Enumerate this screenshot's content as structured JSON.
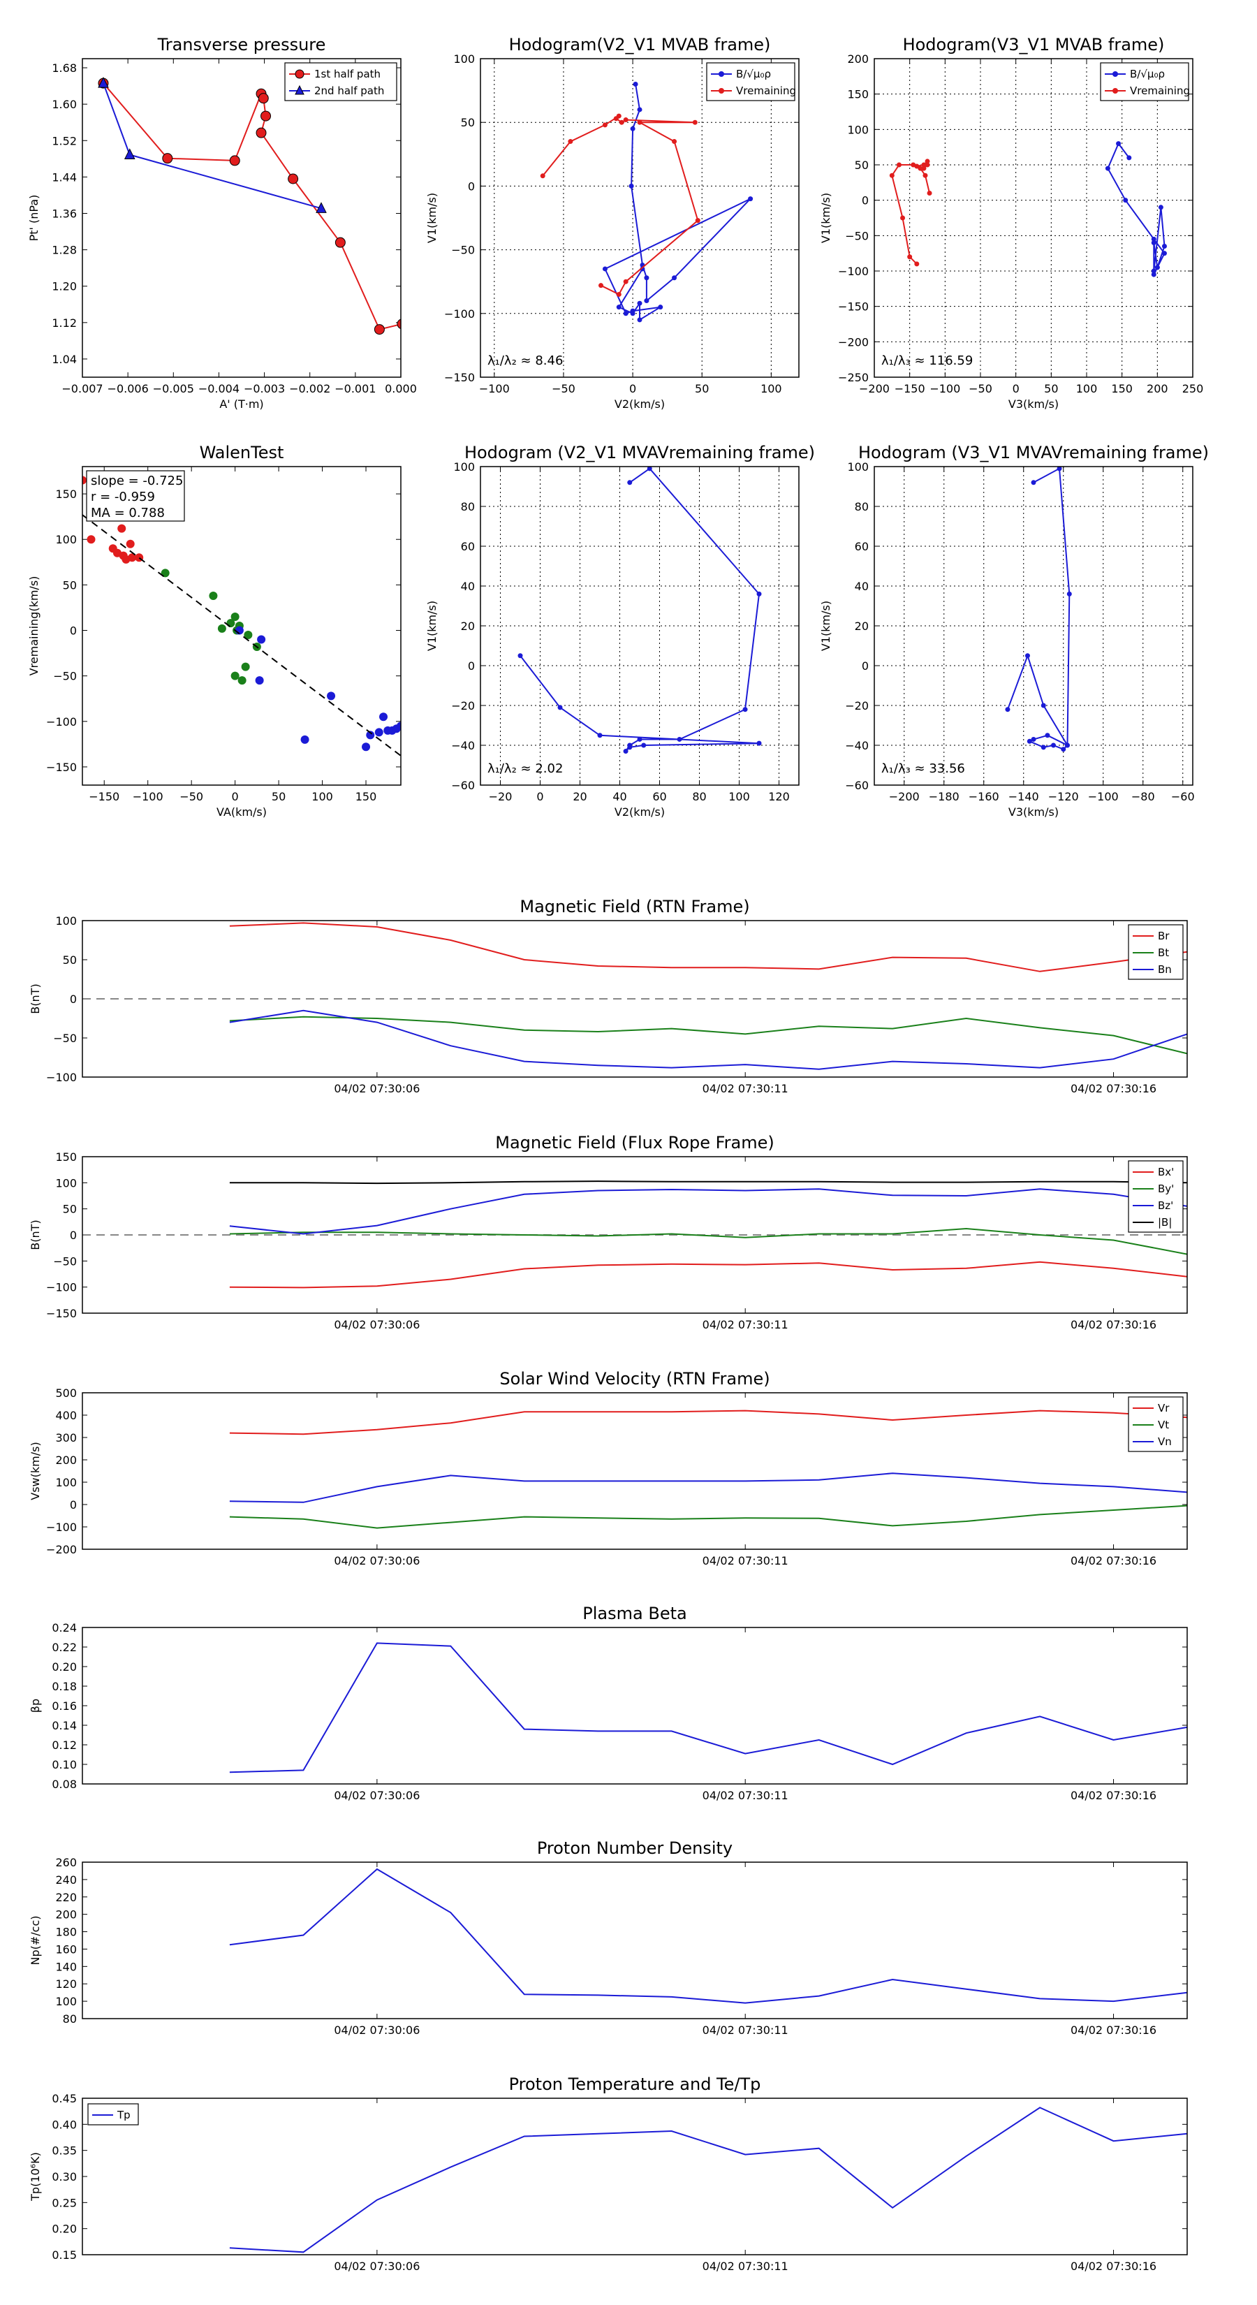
{
  "colors": {
    "red": "#e11d1d",
    "green": "#1a801a",
    "blue": "#1b1bd6",
    "black": "#000000",
    "gray": "#888888"
  },
  "chart_data": [
    {
      "id": "pt",
      "type": "scatter",
      "title": "Transverse pressure",
      "xlabel": "A' (T·m)",
      "ylabel": "Pt' (nPa)",
      "xlim": [
        -0.007,
        0.0
      ],
      "ylim": [
        1.0,
        1.7
      ],
      "xticks": [
        "−0.007",
        "−0.006",
        "−0.005",
        "−0.004",
        "−0.003",
        "−0.002",
        "−0.001",
        "0.000"
      ],
      "yticks": [
        "1.04",
        "1.12",
        "1.20",
        "1.28",
        "1.36",
        "1.44",
        "1.52",
        "1.60",
        "1.68"
      ],
      "legend": [
        "1st half path",
        "2nd half path"
      ],
      "series": [
        {
          "name": "1st half path",
          "color": "red",
          "marker": "circle",
          "x": [
            -0.00654,
            -0.00513,
            -0.00365,
            -0.00307,
            -0.00302,
            -0.00297,
            -0.00307,
            -0.00237,
            -0.00133,
            -0.00047,
            3e-05
          ],
          "y": [
            1.646,
            1.481,
            1.476,
            1.623,
            1.613,
            1.574,
            1.537,
            1.436,
            1.296,
            1.105,
            1.117
          ]
        },
        {
          "name": "2nd half path",
          "color": "blue",
          "marker": "triangle",
          "x": [
            -0.00654,
            -0.00596,
            -0.00175
          ],
          "y": [
            1.646,
            1.489,
            1.371
          ]
        }
      ]
    },
    {
      "id": "h1",
      "type": "line",
      "title": "Hodogram(V2_V1 MVAB frame)",
      "xlabel": "V2(km/s)",
      "ylabel": "V1(km/s)",
      "xlim": [
        -110,
        120
      ],
      "ylim": [
        -150,
        100
      ],
      "xticks": [
        "−100",
        "−50",
        "0",
        "50",
        "100"
      ],
      "yticks": [
        "−150",
        "−100",
        "−50",
        "0",
        "50",
        "100"
      ],
      "legend": [
        "B/√μ₀ρ",
        "Vremaining"
      ],
      "annotation": "λ₁/λ₂ ≈ 8.46",
      "series": [
        {
          "name": "B",
          "color": "blue",
          "x": [
            2,
            5,
            0,
            -1,
            7,
            10,
            10,
            30,
            85,
            -20,
            -5,
            0,
            20,
            5,
            5,
            0,
            -10,
            7
          ],
          "y": [
            80,
            60,
            45,
            0,
            -62,
            -72,
            -90,
            -72,
            -10,
            -65,
            -100,
            -98,
            -95,
            -105,
            -92,
            -100,
            -95,
            -65
          ]
        },
        {
          "name": "V",
          "color": "red",
          "x": [
            -65,
            -45,
            -20,
            -10,
            -12,
            -8,
            -5,
            45,
            5,
            30,
            47,
            -5,
            -10,
            -23
          ],
          "y": [
            8,
            35,
            48,
            55,
            53,
            50,
            52,
            50,
            50,
            35,
            -27,
            -75,
            -85,
            -78
          ]
        }
      ]
    },
    {
      "id": "h2",
      "type": "line",
      "title": "Hodogram(V3_V1 MVAB frame)",
      "xlabel": "V3(km/s)",
      "ylabel": "V1(km/s)",
      "xlim": [
        -200,
        250
      ],
      "ylim": [
        -250,
        200
      ],
      "xticks": [
        "−200",
        "−150",
        "−100",
        "−50",
        "0",
        "50",
        "100",
        "150",
        "200",
        "250"
      ],
      "yticks": [
        "−250",
        "−200",
        "−150",
        "−100",
        "−50",
        "0",
        "50",
        "100",
        "150",
        "200"
      ],
      "legend": [
        "B/√μ₀ρ",
        "Vremaining"
      ],
      "annotation": "λ₁/λ₃ ≈ 116.59",
      "series": [
        {
          "name": "B",
          "color": "blue",
          "x": [
            160,
            145,
            130,
            155,
            195,
            210,
            200,
            195,
            195,
            200,
            210,
            205,
            195
          ],
          "y": [
            60,
            80,
            45,
            0,
            -55,
            -75,
            -95,
            -105,
            -60,
            -95,
            -65,
            -10,
            -100
          ]
        },
        {
          "name": "V",
          "color": "red",
          "x": [
            -140,
            -150,
            -160,
            -175,
            -165,
            -145,
            -130,
            -125,
            -125,
            -130,
            -140,
            -135,
            -128,
            -122
          ],
          "y": [
            -90,
            -80,
            -25,
            35,
            50,
            50,
            45,
            50,
            55,
            50,
            48,
            45,
            35,
            10
          ]
        }
      ]
    },
    {
      "id": "walen",
      "type": "scatter",
      "title": "WalenTest",
      "xlabel": "VA(km/s)",
      "ylabel": "Vremaining(km/s)",
      "xlim": [
        -175,
        190
      ],
      "ylim": [
        -170,
        180
      ],
      "xticks": [
        "−150",
        "−100",
        "−50",
        "0",
        "50",
        "100",
        "150"
      ],
      "yticks": [
        "−150",
        "−100",
        "−50",
        "0",
        "50",
        "100",
        "150"
      ],
      "legend": [
        "slope = -0.725",
        "r = -0.959",
        "MA = 0.788"
      ],
      "fit_slope": -0.725,
      "series": [
        {
          "name": "red",
          "color": "red",
          "x": [
            -165,
            -175,
            -140,
            -135,
            -128,
            -125,
            -118,
            -110,
            -130,
            -120
          ],
          "y": [
            100,
            165,
            90,
            85,
            82,
            78,
            80,
            80,
            112,
            95
          ]
        },
        {
          "name": "green",
          "color": "green",
          "x": [
            -80,
            -25,
            -15,
            0,
            5,
            2,
            0,
            8,
            12,
            15,
            25,
            -5
          ],
          "y": [
            63,
            38,
            2,
            15,
            5,
            0,
            -50,
            -55,
            -40,
            -5,
            -18,
            8
          ]
        },
        {
          "name": "blue",
          "color": "blue",
          "x": [
            30,
            28,
            80,
            110,
            150,
            155,
            165,
            170,
            180,
            185,
            190,
            175,
            5
          ],
          "y": [
            -10,
            -55,
            -120,
            -72,
            -128,
            -115,
            -112,
            -95,
            -110,
            -108,
            -105,
            -110,
            0
          ]
        }
      ]
    },
    {
      "id": "h3",
      "type": "line",
      "title": "Hodogram (V2_V1 MVAVremaining frame)",
      "xlabel": "V2(km/s)",
      "ylabel": "V1(km/s)",
      "xlim": [
        -30,
        130
      ],
      "ylim": [
        -60,
        100
      ],
      "xticks": [
        "−20",
        "0",
        "20",
        "40",
        "60",
        "80",
        "100",
        "120"
      ],
      "yticks": [
        "−60",
        "−40",
        "−20",
        "0",
        "20",
        "40",
        "60",
        "80",
        "100"
      ],
      "annotation": "λ₁/λ₂ ≈ 2.02",
      "series": [
        {
          "name": "B",
          "color": "blue",
          "x": [
            45,
            55,
            110,
            103,
            70,
            50,
            45,
            43,
            45,
            52,
            110,
            30,
            10,
            -10
          ],
          "y": [
            92,
            99,
            36,
            -22,
            -37,
            -37,
            -40,
            -43,
            -41,
            -40,
            -39,
            -35,
            -21,
            5
          ]
        }
      ]
    },
    {
      "id": "h4",
      "type": "line",
      "title": "Hodogram (V3_V1 MVAVremaining frame)",
      "xlabel": "V3(km/s)",
      "ylabel": "V1(km/s)",
      "xlim": [
        -215,
        -55
      ],
      "ylim": [
        -60,
        100
      ],
      "xticks": [
        "−200",
        "−180",
        "−160",
        "−140",
        "−120",
        "−100",
        "−80",
        "−60"
      ],
      "yticks": [
        "−60",
        "−40",
        "−20",
        "0",
        "20",
        "40",
        "60",
        "80",
        "100"
      ],
      "annotation": "λ₁/λ₃ ≈ 33.56",
      "series": [
        {
          "name": "B",
          "color": "blue",
          "x": [
            -135,
            -122,
            -117,
            -118,
            -128,
            -135,
            -137,
            -130,
            -125,
            -120,
            -118,
            -130,
            -138,
            -148
          ],
          "y": [
            92,
            99,
            36,
            -40,
            -35,
            -37,
            -38,
            -41,
            -40,
            -42,
            -40,
            -20,
            5,
            -22
          ]
        }
      ]
    },
    {
      "id": "bfield",
      "type": "line",
      "title": "Magnetic Field (RTN Frame)",
      "ylabel": "B(nT)",
      "ylim": [
        -100,
        100
      ],
      "yticks": [
        "−100",
        "−50",
        "0",
        "50",
        "100"
      ],
      "xticks": [
        "04/02 07:30:06",
        "04/02 07:30:11",
        "04/02 07:30:16"
      ],
      "legend": [
        "Br",
        "Bt",
        "Bn"
      ],
      "x": [
        0,
        1,
        2,
        3,
        4,
        5,
        6,
        7,
        8,
        9,
        10,
        11,
        12,
        13
      ],
      "series": [
        {
          "name": "Br",
          "color": "red",
          "values": [
            93,
            97,
            92,
            75,
            50,
            42,
            40,
            40,
            38,
            53,
            52,
            35,
            47,
            60
          ]
        },
        {
          "name": "Bt",
          "color": "green",
          "values": [
            -28,
            -23,
            -25,
            -30,
            -40,
            -42,
            -38,
            -45,
            -35,
            -38,
            -25,
            -37,
            -47,
            -70
          ]
        },
        {
          "name": "Bn",
          "color": "blue",
          "values": [
            -30,
            -15,
            -30,
            -60,
            -80,
            -85,
            -88,
            -84,
            -90,
            -80,
            -83,
            -88,
            -77,
            -45
          ]
        }
      ]
    },
    {
      "id": "bflux",
      "type": "line",
      "title": "Magnetic Field (Flux Rope Frame)",
      "ylabel": "B(nT)",
      "ylim": [
        -150,
        150
      ],
      "yticks": [
        "−150",
        "−100",
        "−50",
        "0",
        "50",
        "100",
        "150"
      ],
      "xticks": [
        "04/02 07:30:06",
        "04/02 07:30:11",
        "04/02 07:30:16"
      ],
      "legend": [
        "Bx'",
        "By'",
        "Bz'",
        "|B|"
      ],
      "x": [
        0,
        1,
        2,
        3,
        4,
        5,
        6,
        7,
        8,
        9,
        10,
        11,
        12,
        13
      ],
      "series": [
        {
          "name": "Bx'",
          "color": "red",
          "values": [
            -100,
            -101,
            -98,
            -85,
            -65,
            -58,
            -56,
            -57,
            -54,
            -67,
            -64,
            -52,
            -64,
            -80
          ]
        },
        {
          "name": "By'",
          "color": "green",
          "values": [
            2,
            5,
            5,
            2,
            0,
            -2,
            2,
            -5,
            2,
            2,
            12,
            0,
            -10,
            -37
          ]
        },
        {
          "name": "Bz'",
          "color": "blue",
          "values": [
            17,
            2,
            18,
            50,
            78,
            85,
            87,
            85,
            88,
            76,
            75,
            88,
            78,
            55
          ]
        },
        {
          "name": "|B|",
          "color": "black",
          "values": [
            100,
            100,
            99,
            100,
            102,
            103,
            102,
            102,
            102,
            101,
            101,
            102,
            102,
            100
          ]
        }
      ]
    },
    {
      "id": "vsw",
      "type": "line",
      "title": "Solar Wind Velocity (RTN Frame)",
      "ylabel": "Vsw(km/s)",
      "ylim": [
        -200,
        500
      ],
      "yticks": [
        "−200",
        "−100",
        "0",
        "100",
        "200",
        "300",
        "400",
        "500"
      ],
      "xticks": [
        "04/02 07:30:06",
        "04/02 07:30:11",
        "04/02 07:30:16"
      ],
      "legend": [
        "Vr",
        "Vt",
        "Vn"
      ],
      "x": [
        0,
        1,
        2,
        3,
        4,
        5,
        6,
        7,
        8,
        9,
        10,
        11,
        12,
        13
      ],
      "series": [
        {
          "name": "Vr",
          "color": "red",
          "values": [
            320,
            315,
            335,
            365,
            415,
            415,
            415,
            420,
            405,
            378,
            400,
            420,
            410,
            390
          ]
        },
        {
          "name": "Vt",
          "color": "green",
          "values": [
            -55,
            -65,
            -105,
            -80,
            -55,
            -60,
            -65,
            -60,
            -62,
            -95,
            -75,
            -45,
            -25,
            -5
          ]
        },
        {
          "name": "Vn",
          "color": "blue",
          "values": [
            15,
            10,
            80,
            130,
            105,
            105,
            105,
            105,
            110,
            140,
            120,
            95,
            80,
            55
          ]
        }
      ]
    },
    {
      "id": "beta",
      "type": "line",
      "title": "Plasma Beta",
      "ylabel": "βp",
      "ylim": [
        0.08,
        0.24
      ],
      "yticks": [
        "0.08",
        "0.10",
        "0.12",
        "0.14",
        "0.16",
        "0.18",
        "0.20",
        "0.22",
        "0.24"
      ],
      "xticks": [
        "04/02 07:30:06",
        "04/02 07:30:11",
        "04/02 07:30:16"
      ],
      "x": [
        0,
        1,
        2,
        3,
        4,
        5,
        6,
        7,
        8,
        9,
        10,
        11,
        12,
        13
      ],
      "series": [
        {
          "name": "beta",
          "color": "blue",
          "values": [
            0.092,
            0.094,
            0.224,
            0.221,
            0.136,
            0.134,
            0.134,
            0.111,
            0.125,
            0.1,
            0.132,
            0.149,
            0.125,
            0.138
          ]
        }
      ]
    },
    {
      "id": "np",
      "type": "line",
      "title": "Proton Number Density",
      "ylabel": "Np(#/cc)",
      "ylim": [
        80,
        260
      ],
      "yticks": [
        "80",
        "100",
        "120",
        "140",
        "160",
        "180",
        "200",
        "220",
        "240",
        "260"
      ],
      "xticks": [
        "04/02 07:30:06",
        "04/02 07:30:11",
        "04/02 07:30:16"
      ],
      "x": [
        0,
        1,
        2,
        3,
        4,
        5,
        6,
        7,
        8,
        9,
        10,
        11,
        12,
        13
      ],
      "series": [
        {
          "name": "Np",
          "color": "blue",
          "values": [
            165,
            176,
            252,
            202,
            108,
            107,
            105,
            98,
            106,
            125,
            114,
            103,
            100,
            110
          ]
        }
      ]
    },
    {
      "id": "tp",
      "type": "line",
      "title": "Proton Temperature and Te/Tp",
      "ylabel": "Tp(10⁶K)",
      "ylim": [
        0.15,
        0.45
      ],
      "yticks": [
        "0.15",
        "0.20",
        "0.25",
        "0.30",
        "0.35",
        "0.40",
        "0.45"
      ],
      "xticks": [
        "04/02 07:30:06",
        "04/02 07:30:11",
        "04/02 07:30:16"
      ],
      "legend": [
        "Tp"
      ],
      "x": [
        0,
        1,
        2,
        3,
        4,
        5,
        6,
        7,
        8,
        9,
        10,
        11,
        12,
        13
      ],
      "series": [
        {
          "name": "Tp",
          "color": "blue",
          "values": [
            0.163,
            0.155,
            0.255,
            0.318,
            0.377,
            0.382,
            0.387,
            0.342,
            0.354,
            0.24,
            0.339,
            0.432,
            0.368,
            0.382
          ]
        }
      ]
    }
  ]
}
